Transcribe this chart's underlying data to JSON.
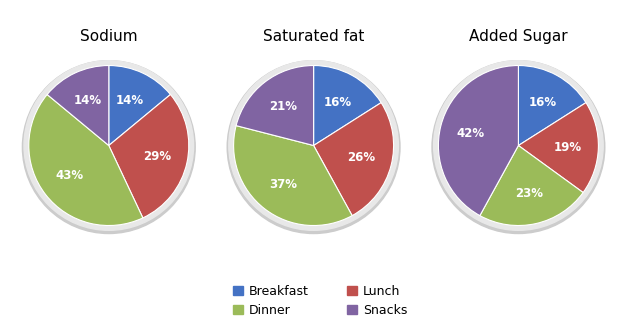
{
  "charts": [
    {
      "title": "Sodium",
      "values": [
        14,
        29,
        43,
        14
      ],
      "labels": [
        "14%",
        "29%",
        "43%",
        "14%"
      ],
      "startangle": 90
    },
    {
      "title": "Saturated fat",
      "values": [
        16,
        26,
        37,
        21
      ],
      "labels": [
        "16%",
        "26%",
        "37%",
        "21%"
      ],
      "startangle": 90
    },
    {
      "title": "Added Sugar",
      "values": [
        16,
        19,
        23,
        42
      ],
      "labels": [
        "16%",
        "19%",
        "23%",
        "42%"
      ],
      "startangle": 90
    }
  ],
  "colors": [
    "#4472C4",
    "#C0504D",
    "#9BBB59",
    "#8064A2"
  ],
  "legend_labels": [
    "Breakfast",
    "Lunch",
    "Dinner",
    "Snacks"
  ],
  "text_color": "#FFFFFF",
  "font_size_title": 11,
  "font_size_label": 8.5,
  "bg_color": "#FFFFFF"
}
